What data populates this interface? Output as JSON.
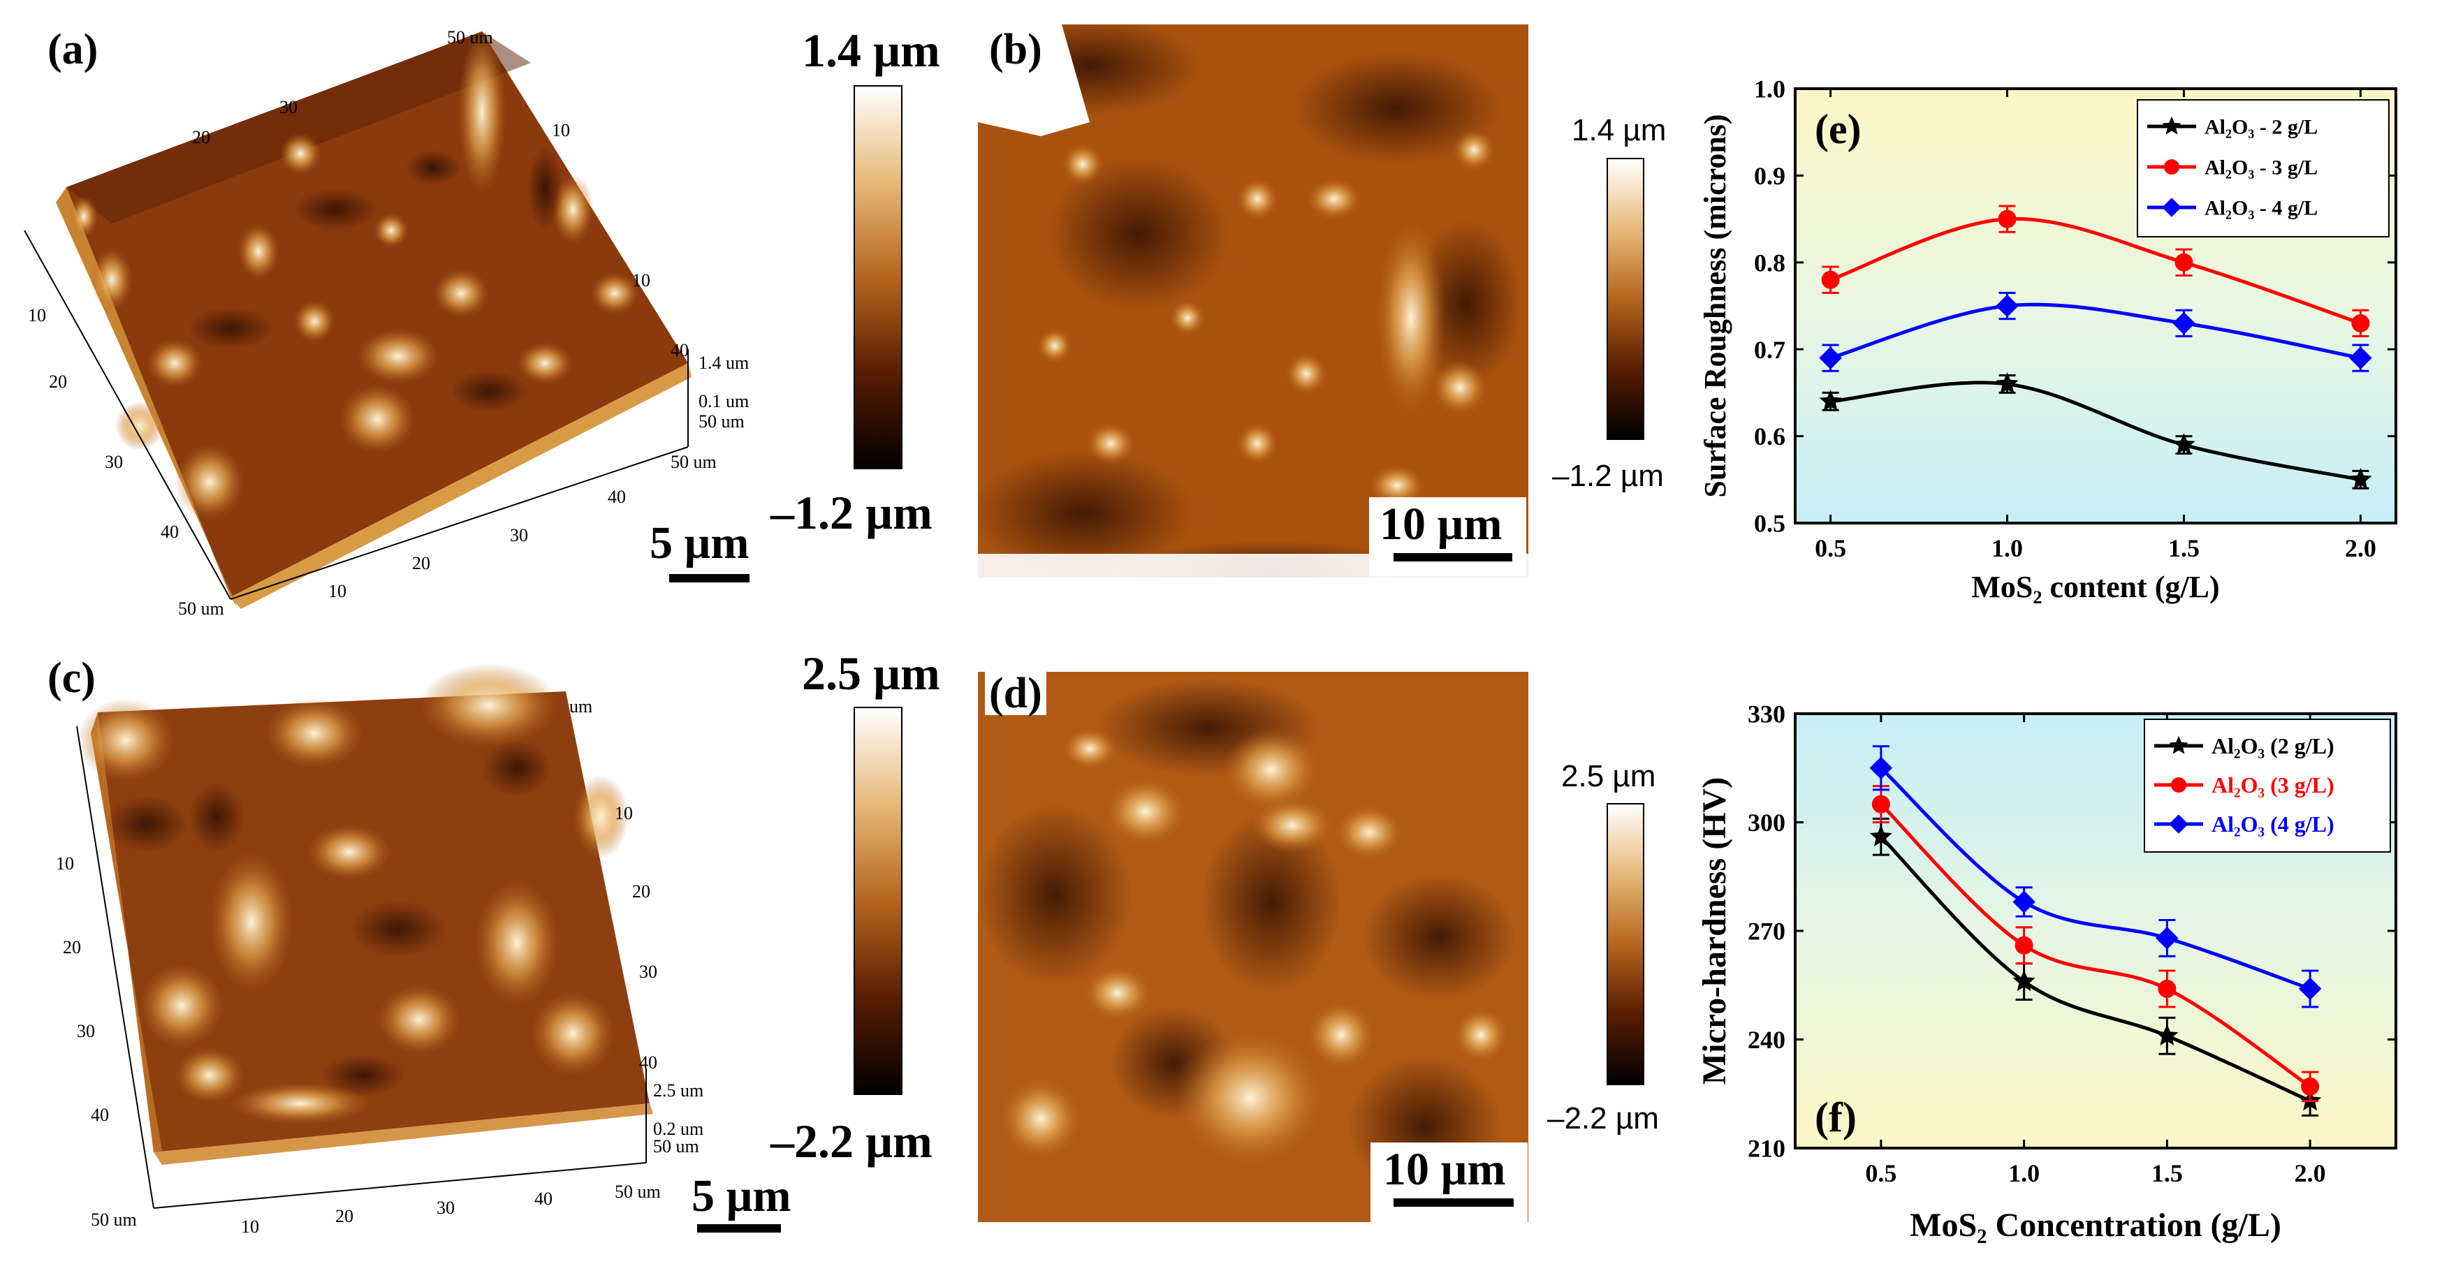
{
  "panels": {
    "a": {
      "label": "(a)",
      "scale_bar": "5 µm",
      "cbar_top": "1.4 µm",
      "cbar_bottom": "–1.2 µm",
      "axis_ticks": [
        "50 um",
        "10",
        "20",
        "30",
        "10",
        "20",
        "30",
        "40",
        "50 um",
        "10",
        "20",
        "30",
        "40",
        "10",
        "40",
        "50 um",
        "1.4 um",
        "0.1 um",
        "50 um"
      ]
    },
    "b": {
      "label": "(b)",
      "scale_bar": "10 µm",
      "cbar_top": "1.4 µm",
      "cbar_bottom": "–1.2 µm"
    },
    "c": {
      "label": "(c)",
      "scale_bar": "5 µm",
      "cbar_top": "2.5 µm",
      "cbar_bottom": "–2.2 µm",
      "axis_ticks": [
        "um",
        "10",
        "20",
        "30",
        "10",
        "20",
        "30",
        "40",
        "50 um",
        "10",
        "20",
        "30",
        "40",
        "50 um",
        "40",
        "2.5 um",
        "0.2 um",
        "50 um"
      ]
    },
    "d": {
      "label": "(d)",
      "scale_bar": "10 µm",
      "cbar_top": "2.5 µm",
      "cbar_bottom": "–2.2 µm"
    },
    "e": {
      "label": "(e)"
    },
    "f": {
      "label": "(f)"
    }
  },
  "chart_data": [
    {
      "id": "e",
      "type": "line",
      "xlabel": "MoS₂ content (g/L)",
      "ylabel": "Surface Roughness (microns)",
      "x": [
        0.5,
        1.0,
        1.5,
        2.0
      ],
      "xlim": [
        0.4,
        2.1
      ],
      "ylim": [
        0.5,
        1.0
      ],
      "xticks": [
        "0.5",
        "1.0",
        "1.5",
        "2.0"
      ],
      "yticks": [
        "0.5",
        "0.6",
        "0.7",
        "0.8",
        "0.9",
        "1.0"
      ],
      "legend_position": "top-right",
      "series": [
        {
          "name": "Al₂O₃ - 2 g/L",
          "color": "#000000",
          "marker": "star",
          "values": [
            0.64,
            0.66,
            0.59,
            0.55
          ],
          "err": [
            0.01,
            0.01,
            0.01,
            0.01
          ]
        },
        {
          "name": "Al₂O₃ - 3 g/L",
          "color": "#ff0000",
          "marker": "circle",
          "values": [
            0.78,
            0.85,
            0.8,
            0.73
          ],
          "err": [
            0.015,
            0.015,
            0.015,
            0.015
          ]
        },
        {
          "name": "Al₂O₃ - 4 g/L",
          "color": "#0000ff",
          "marker": "diamond",
          "values": [
            0.69,
            0.75,
            0.73,
            0.69
          ],
          "err": [
            0.015,
            0.015,
            0.015,
            0.015
          ]
        }
      ]
    },
    {
      "id": "f",
      "type": "line",
      "xlabel": "MoS₂ Concentration (g/L)",
      "ylabel": "Micro-hardness (HV)",
      "x": [
        0.5,
        1.0,
        1.5,
        2.0
      ],
      "xlim": [
        0.2,
        2.3
      ],
      "ylim": [
        210,
        330
      ],
      "xticks": [
        "0.5",
        "1.0",
        "1.5",
        "2.0"
      ],
      "yticks": [
        "210",
        "240",
        "270",
        "300",
        "330"
      ],
      "legend_position": "top-right",
      "series": [
        {
          "name": "Al₂O₃ (2 g/L)",
          "color": "#000000",
          "marker": "star",
          "values": [
            296,
            256,
            241,
            223
          ],
          "err": [
            5,
            5,
            5,
            4
          ]
        },
        {
          "name": "Al₂O₃ (3 g/L)",
          "color": "#ff0000",
          "marker": "circle",
          "values": [
            305,
            266,
            254,
            227
          ],
          "err": [
            5,
            5,
            5,
            4
          ]
        },
        {
          "name": "Al₂O₃ (4 g/L)",
          "color": "#0000ff",
          "marker": "diamond",
          "values": [
            315,
            278,
            268,
            254
          ],
          "err": [
            6,
            4,
            5,
            5
          ]
        }
      ]
    }
  ]
}
